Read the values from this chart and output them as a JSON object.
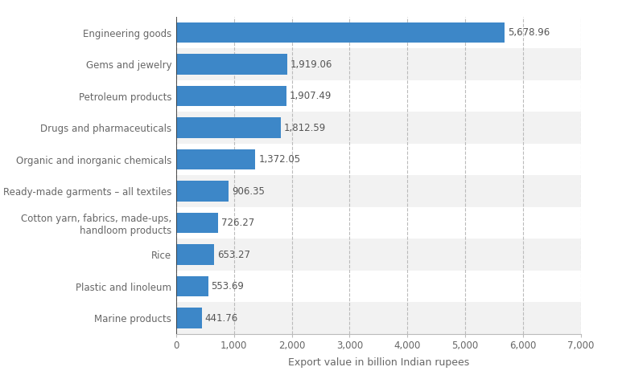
{
  "categories": [
    "Marine products",
    "Plastic and linoleum",
    "Rice",
    "Cotton yarn, fabrics, made-ups,\nhandloom products",
    "Ready-made garments – all textiles",
    "Organic and inorganic chemicals",
    "Drugs and pharmaceuticals",
    "Petroleum products",
    "Gems and jewelry",
    "Engineering goods"
  ],
  "values": [
    441.76,
    553.69,
    653.27,
    726.27,
    906.35,
    1372.05,
    1812.59,
    1907.49,
    1919.06,
    5678.96
  ],
  "labels": [
    "441.76",
    "553.69",
    "653.27",
    "726.27",
    "906.35",
    "1,372.05",
    "1,812.59",
    "1,907.49",
    "1,919.06",
    "5,678.96"
  ],
  "bar_color": "#3d87c8",
  "figure_bg": "#ffffff",
  "plot_bg": "#ffffff",
  "row_colors": [
    "#f2f2f2",
    "#ffffff"
  ],
  "xlabel": "Export value in billion Indian rupees",
  "xlim": [
    0,
    7000
  ],
  "xticks": [
    0,
    1000,
    2000,
    3000,
    4000,
    5000,
    6000,
    7000
  ],
  "xtick_labels": [
    "0",
    "1,000",
    "2,000",
    "3,000",
    "4,000",
    "5,000",
    "6,000",
    "7,000"
  ],
  "label_fontsize": 8.5,
  "tick_fontsize": 8.5,
  "xlabel_fontsize": 9,
  "bar_height": 0.65,
  "value_label_color": "#555555",
  "ytick_color": "#666666",
  "xtick_color": "#666666"
}
